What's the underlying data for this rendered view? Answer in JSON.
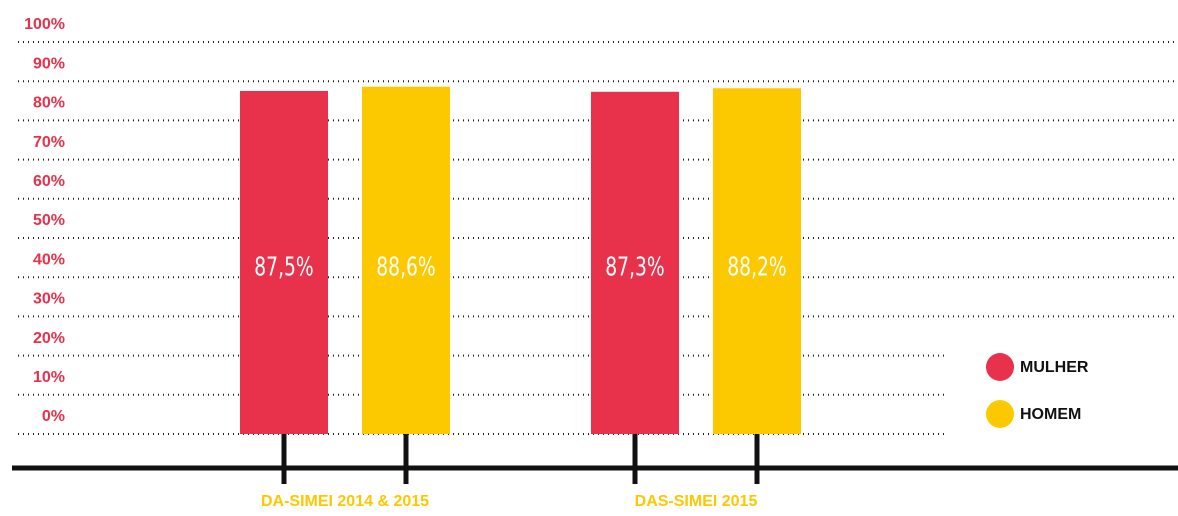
{
  "chart_data": {
    "type": "bar",
    "categories": [
      "DA-SIMEI 2014 & 2015",
      "DAS-SIMEI 2015"
    ],
    "series": [
      {
        "name": "MULHER",
        "color": "#e8314a",
        "values": [
          87.5,
          87.3
        ],
        "value_labels": [
          "87,5%",
          "87,3%"
        ]
      },
      {
        "name": "HOMEM",
        "color": "#fcc800",
        "values": [
          88.6,
          88.2
        ],
        "value_labels": [
          "88,6%",
          "88,2%"
        ]
      }
    ],
    "ylim": [
      0,
      100
    ],
    "yticks": [
      {
        "value": 0,
        "label": "0%"
      },
      {
        "value": 10,
        "label": "10%"
      },
      {
        "value": 20,
        "label": "20%"
      },
      {
        "value": 30,
        "label": "30%"
      },
      {
        "value": 40,
        "label": "40%"
      },
      {
        "value": 50,
        "label": "50%"
      },
      {
        "value": 60,
        "label": "60%"
      },
      {
        "value": 70,
        "label": "70%"
      },
      {
        "value": 80,
        "label": "80%"
      },
      {
        "value": 90,
        "label": "90%"
      },
      {
        "value": 100,
        "label": "100%"
      }
    ],
    "grid": true
  }
}
